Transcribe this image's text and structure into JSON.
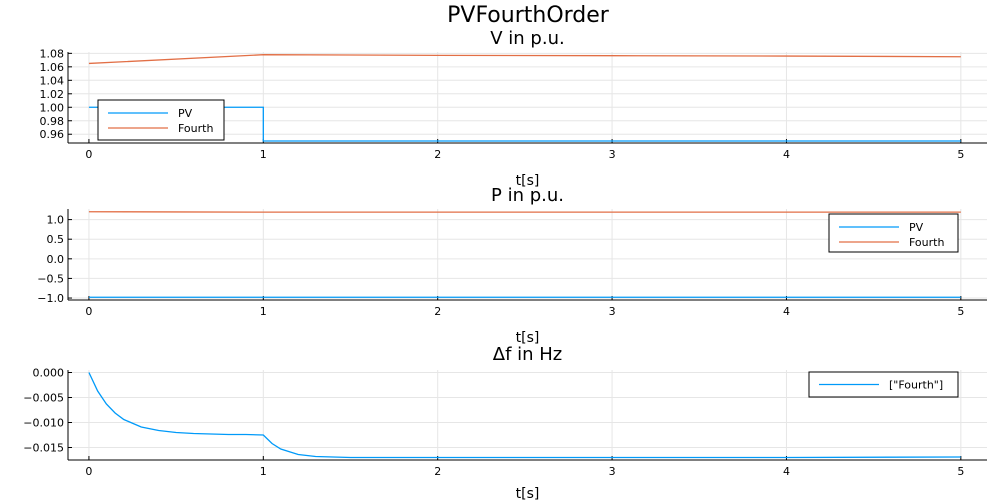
{
  "suptitle": "PVFourthOrder",
  "colors": {
    "PV": "#009af9",
    "Fourth": "#e26f46"
  },
  "chart_data": [
    {
      "type": "line",
      "title": "V in p.u.",
      "xlabel": "t[s]",
      "ylabel": "",
      "xlim": [
        -0.12,
        5.15
      ],
      "ylim": [
        0.947,
        1.082
      ],
      "xticks": [
        0,
        1,
        2,
        3,
        4,
        5
      ],
      "yticks": [
        0.96,
        0.98,
        1.0,
        1.02,
        1.04,
        1.06,
        1.08
      ],
      "ytick_labels": [
        "0.96",
        "0.98",
        "1.00",
        "1.02",
        "1.04",
        "1.06",
        "1.08"
      ],
      "grid": true,
      "legend_position": "bottom-left",
      "series": [
        {
          "name": "PV",
          "color": "#009af9",
          "x": [
            0,
            1,
            1,
            5
          ],
          "y": [
            1.0,
            1.0,
            0.95,
            0.95
          ]
        },
        {
          "name": "Fourth",
          "color": "#e26f46",
          "x": [
            0,
            1,
            1.5,
            2,
            3,
            4,
            5
          ],
          "y": [
            1.065,
            1.078,
            1.0775,
            1.077,
            1.0765,
            1.076,
            1.075
          ]
        }
      ]
    },
    {
      "type": "line",
      "title": "P in p.u.",
      "xlabel": "t[s]",
      "ylabel": "",
      "xlim": [
        -0.12,
        5.15
      ],
      "ylim": [
        -1.05,
        1.27
      ],
      "xticks": [
        0,
        1,
        2,
        3,
        4,
        5
      ],
      "yticks": [
        -1.0,
        -0.5,
        0.0,
        0.5,
        1.0
      ],
      "ytick_labels": [
        "−1.0",
        "−0.5",
        "0.0",
        "0.5",
        "1.0"
      ],
      "grid": true,
      "legend_position": "top-right",
      "series": [
        {
          "name": "PV",
          "color": "#009af9",
          "x": [
            0,
            5
          ],
          "y": [
            -0.98,
            -0.98
          ]
        },
        {
          "name": "Fourth",
          "color": "#e26f46",
          "x": [
            0,
            0.5,
            1,
            2,
            3,
            4,
            5
          ],
          "y": [
            1.2,
            1.195,
            1.19,
            1.19,
            1.19,
            1.19,
            1.19
          ]
        }
      ]
    },
    {
      "type": "line",
      "title": "Δf in Hz",
      "xlabel": "t[s]",
      "ylabel": "",
      "xlim": [
        -0.12,
        5.15
      ],
      "ylim": [
        -0.0175,
        0.0005
      ],
      "xticks": [
        0,
        1,
        2,
        3,
        4,
        5
      ],
      "yticks": [
        -0.015,
        -0.01,
        -0.005,
        0.0
      ],
      "ytick_labels": [
        "−0.015",
        "−0.010",
        "−0.005",
        "0.000"
      ],
      "grid": true,
      "legend_position": "top-right",
      "series": [
        {
          "name": "[\"Fourth\"]",
          "color": "#009af9",
          "x": [
            0,
            0.05,
            0.1,
            0.15,
            0.2,
            0.3,
            0.4,
            0.5,
            0.6,
            0.7,
            0.8,
            0.9,
            1.0,
            1.05,
            1.1,
            1.2,
            1.3,
            1.4,
            1.5,
            1.7,
            2.0,
            3.0,
            4.0,
            5.0
          ],
          "y": [
            0.0,
            -0.0037,
            -0.0063,
            -0.0081,
            -0.0094,
            -0.0109,
            -0.0116,
            -0.012,
            -0.0122,
            -0.0123,
            -0.0124,
            -0.0124,
            -0.0125,
            -0.0142,
            -0.0153,
            -0.0164,
            -0.0168,
            -0.0169,
            -0.017,
            -0.017,
            -0.017,
            -0.017,
            -0.017,
            -0.0169
          ]
        }
      ]
    }
  ]
}
